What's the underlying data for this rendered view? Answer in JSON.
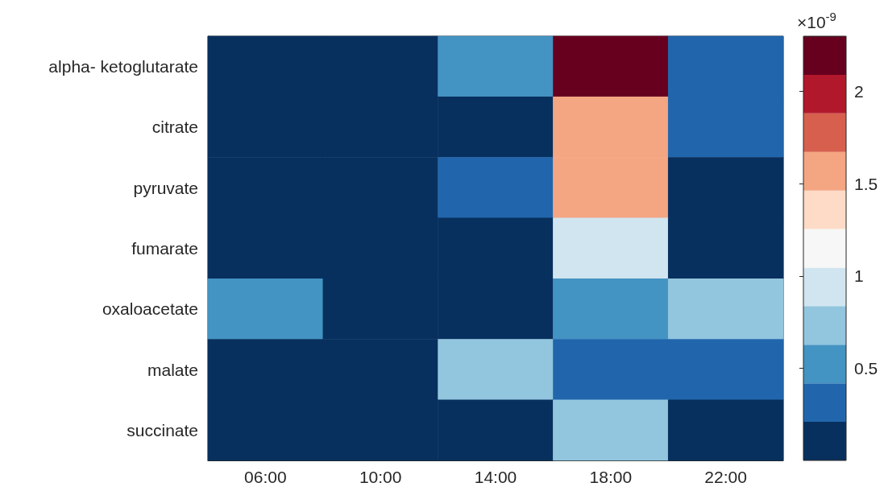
{
  "chart_data": {
    "type": "heatmap",
    "categories": [
      "06:00",
      "10:00",
      "14:00",
      "18:00",
      "22:00"
    ],
    "y_categories": [
      "alpha- ketoglutarate",
      "citrate",
      "pyruvate",
      "fumarate",
      "oxaloacetate",
      "malate",
      "succinate"
    ],
    "cells": [
      [
        0,
        0,
        0.5,
        2.3,
        0.3
      ],
      [
        0,
        0,
        0,
        1.55,
        0.3
      ],
      [
        0,
        0,
        0.3,
        1.55,
        0
      ],
      [
        0,
        0,
        0,
        0.95,
        0
      ],
      [
        0.5,
        0,
        0,
        0.5,
        0.75
      ],
      [
        0,
        0,
        0.75,
        0.3,
        0.3
      ],
      [
        0,
        0,
        0,
        0.75,
        0
      ]
    ],
    "clim": [
      0,
      2.3
    ],
    "cticks": [
      0.5,
      1,
      1.5,
      2
    ],
    "annotations": [
      "×10$^{-9}$"
    ]
  }
}
